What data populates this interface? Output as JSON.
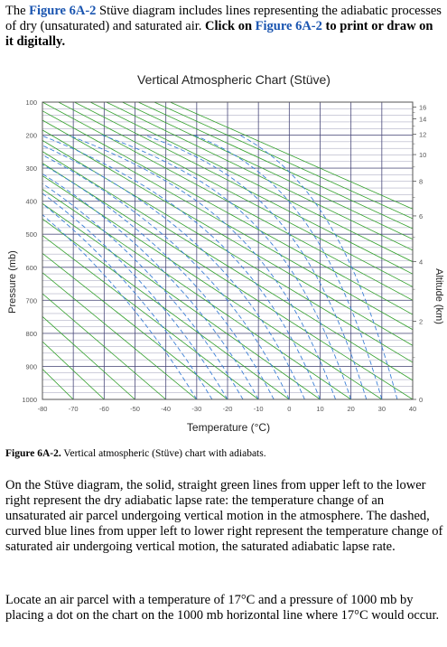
{
  "intro": {
    "t1": "The ",
    "link1": "Figure 6A-2",
    "t2": " Stüve diagram includes lines representing the adiabatic processes of dry (unsaturated) and saturated air. ",
    "bold": "Click on ",
    "link2": "Figure 6A-2",
    "bold2": " to print or draw on it digitally."
  },
  "caption": {
    "label": "Figure 6A-2.",
    "text": " Vertical atmospheric (Stüve) chart with adiabats."
  },
  "paragraphs": {
    "p1": "On the Stüve diagram, the solid, straight green lines from upper left to the lower right represent the dry adiabatic lapse rate: the temperature change of an unsaturated air parcel undergoing vertical motion in the atmosphere. The dashed, curved blue lines from upper left to lower right represent the temperature change of saturated air undergoing vertical motion, the saturated adiabatic lapse rate.",
    "p2": "Locate an air parcel with a temperature of 17°C and a pressure of 1000 mb by placing a dot on the chart on the 1000 mb horizontal line where 17°C would occur."
  },
  "colors": {
    "dry_adiabat": "#33a02c",
    "moist_adiabat": "#3b7fd6",
    "grid": "#4a4a7a",
    "link": "#1a55b0"
  },
  "chart_data": {
    "type": "line",
    "title": "Vertical Atmospheric Chart (Stüve)",
    "xlabel": "Temperature (°C)",
    "ylabel": "Pressure (mb)",
    "y2label": "Altitude (km)",
    "xlim": [
      -80,
      40
    ],
    "ylim": [
      1000,
      100
    ],
    "x_ticks": [
      -80,
      -70,
      -60,
      -50,
      -40,
      -30,
      -20,
      -10,
      0,
      10,
      20,
      30,
      40
    ],
    "x_tick_labels": [
      "-80",
      "-70",
      "-60",
      "-50",
      "-40",
      "-30",
      "-20",
      "-10",
      "0",
      "10",
      "20",
      "30",
      "40"
    ],
    "pressure_ticks": [
      100,
      200,
      300,
      400,
      500,
      600,
      700,
      800,
      900,
      1000
    ],
    "pressure_tick_labels": [
      "100",
      "200",
      "300",
      "400",
      "500",
      "600",
      "700",
      "800",
      "900",
      "1000"
    ],
    "altitude_ticks_km": [
      0,
      2,
      4,
      6,
      8,
      10,
      12,
      14,
      16
    ],
    "altitude_tick_labels": [
      "0",
      "2",
      "4",
      "6",
      "8",
      "10",
      "12",
      "14",
      "16"
    ],
    "pressure_scale": "linear",
    "grid": true,
    "series": [
      {
        "style": "solid",
        "color": "green",
        "kind": "dry adiabats",
        "surface_temperatures_C": [
          -80,
          -70,
          -60,
          -50,
          -40,
          -30,
          -20,
          -10,
          0,
          10,
          20,
          30,
          40,
          50,
          60,
          70,
          80,
          90,
          100,
          110,
          120,
          130,
          140,
          150,
          160,
          170,
          180
        ]
      },
      {
        "style": "dashed",
        "color": "blue",
        "kind": "saturated adiabats",
        "surface_temperatures_C": [
          -30,
          -25,
          -20,
          -15,
          -10,
          -5,
          0,
          5,
          10,
          15,
          20,
          25,
          30,
          35
        ]
      }
    ]
  }
}
